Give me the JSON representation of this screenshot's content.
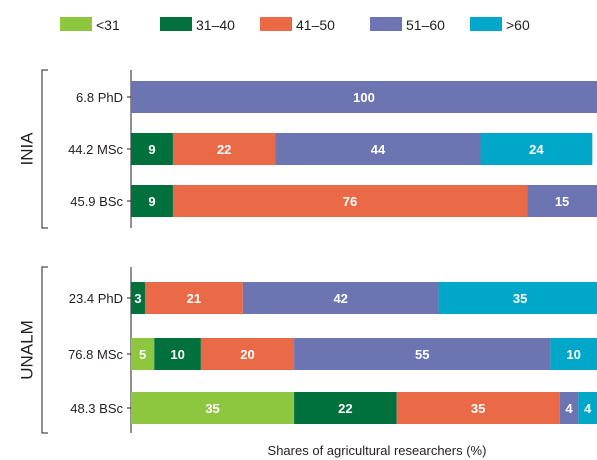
{
  "chart_data": {
    "type": "bar",
    "orientation": "horizontal",
    "stacked": true,
    "xlabel": "Shares of agricultural researchers (%)",
    "xlim": [
      0,
      100
    ],
    "legend": {
      "placement": "top",
      "items": [
        {
          "label": "<31",
          "color": "#8dc63f"
        },
        {
          "label": "31–40",
          "color": "#00703c"
        },
        {
          "label": "41–50",
          "color": "#ea6947"
        },
        {
          "label": "51–60",
          "color": "#6c74b2"
        },
        {
          "label": ">60",
          "color": "#00a7c8"
        }
      ]
    },
    "groups": [
      {
        "name": "INIA",
        "rows": [
          {
            "label": "6.8 PhD",
            "values": [
              0,
              0,
              0,
              100,
              0
            ]
          },
          {
            "label": "44.2 MSc",
            "values": [
              0,
              9,
              22,
              44,
              24
            ]
          },
          {
            "label": "45.9 BSc",
            "values": [
              0,
              9,
              76,
              15,
              0
            ]
          }
        ]
      },
      {
        "name": "UNALM",
        "rows": [
          {
            "label": "23.4 PhD",
            "values": [
              0,
              3,
              21,
              42,
              35
            ]
          },
          {
            "label": "76.8 MSc",
            "values": [
              5,
              10,
              20,
              55,
              10
            ]
          },
          {
            "label": "48.3 BSc",
            "values": [
              35,
              22,
              35,
              4,
              4
            ]
          }
        ]
      }
    ]
  }
}
